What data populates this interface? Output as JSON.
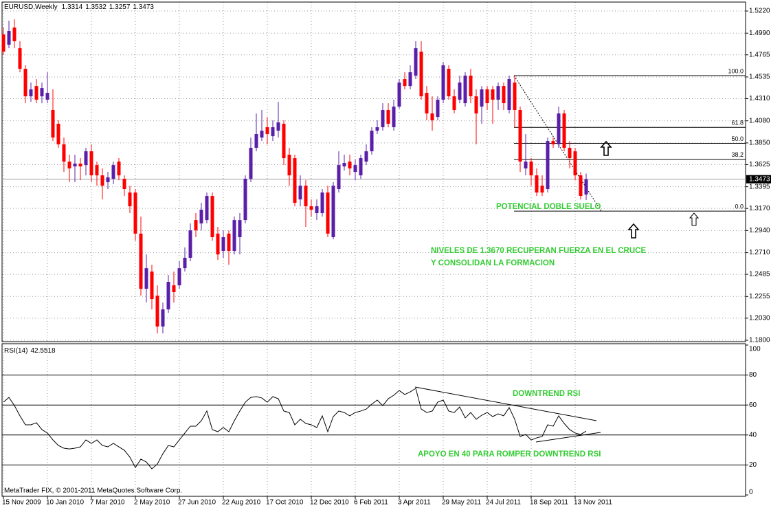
{
  "chart_data": {
    "type": "candlestick",
    "title": "EURUSD,Weekly",
    "footer": "MetaTrader FIX, © 2001-2011 MetaQuotes Software Corp.",
    "categories": [
      "15 Nov 2009",
      null,
      null,
      null,
      null,
      null,
      null,
      null,
      "10 Jan 2010",
      null,
      null,
      null,
      null,
      null,
      null,
      null,
      "7 Mar 2010",
      null,
      null,
      null,
      null,
      null,
      null,
      null,
      "2 May 2010",
      null,
      null,
      null,
      null,
      null,
      null,
      null,
      "27 Jun 2010",
      null,
      null,
      null,
      null,
      null,
      null,
      null,
      "22 Aug 2010",
      null,
      null,
      null,
      null,
      null,
      null,
      null,
      "17 Oct 2010",
      null,
      null,
      null,
      null,
      null,
      null,
      null,
      "12 Dec 2010",
      null,
      null,
      null,
      null,
      null,
      null,
      null,
      "6 Feb 2011",
      null,
      null,
      null,
      null,
      null,
      null,
      null,
      "3 Apr 2011",
      null,
      null,
      null,
      null,
      null,
      null,
      null,
      "29 May 2011",
      null,
      null,
      null,
      null,
      null,
      null,
      null,
      "24 Jul 2011",
      null,
      null,
      null,
      null,
      null,
      null,
      null,
      "18 Sep 2011",
      null,
      null,
      null,
      null,
      null,
      null,
      null,
      "13 Nov 2011",
      null,
      null
    ],
    "open": [
      1.4977,
      1.487,
      1.5048,
      1.4834,
      1.462,
      1.4334,
      1.4441,
      1.4334,
      1.4299,
      1.4192,
      1.4049,
      1.3835,
      1.3656,
      1.3606,
      1.3635,
      1.362,
      1.3763,
      1.362,
      1.3513,
      1.3442,
      1.3478,
      1.3656,
      1.3478,
      1.3335,
      1.3335,
      1.2908,
      1.2335,
      1.2514,
      1.2264,
      1.1943,
      1.2121,
      1.2371,
      1.2371,
      1.2549,
      1.2657,
      1.3049,
      1.3014,
      1.3049,
      1.3299,
      1.2908,
      1.2728,
      1.2908,
      1.2728,
      1.2871,
      1.3049,
      1.3478,
      1.3799,
      1.3906,
      1.4013,
      1.392,
      1.3977,
      1.4049,
      1.3728,
      1.3692,
      1.3263,
      1.3406,
      1.3192,
      1.3121,
      1.3121,
      1.3335,
      1.2871,
      1.3371,
      1.3606,
      1.3656,
      1.3549,
      1.3513,
      1.3656,
      1.3763,
      1.3977,
      1.4013,
      1.4192,
      1.4013,
      1.4227,
      1.4513,
      1.4441,
      1.4549,
      1.4798,
      1.437,
      1.4156,
      1.412,
      1.4299,
      1.462,
      1.4334,
      1.4299,
      1.4263,
      1.4549,
      1.4334,
      1.4227,
      1.4406,
      1.4406,
      1.4299,
      1.4441,
      1.4192,
      1.4477,
      1.4192,
      1.3585,
      1.3656,
      1.3513,
      1.3406,
      1.3371,
      1.387,
      1.3835,
      1.4156,
      1.3799,
      1.3763,
      1.3513,
      1.3314
    ],
    "high": [
      1.5048,
      1.512,
      1.5134,
      1.4906,
      1.4656,
      1.4477,
      1.4513,
      1.4477,
      1.4584,
      1.4406,
      1.4085,
      1.3906,
      1.3728,
      1.3728,
      1.3692,
      1.3799,
      1.3835,
      1.3656,
      1.3585,
      1.3549,
      1.3656,
      1.3692,
      1.3513,
      1.3406,
      1.3371,
      1.3085,
      1.2692,
      1.2585,
      1.2371,
      1.2192,
      1.2478,
      1.2514,
      1.2621,
      1.2764,
      1.3014,
      1.3121,
      1.3228,
      1.3335,
      1.3335,
      1.2978,
      1.2942,
      1.2942,
      1.3085,
      1.3121,
      1.3513,
      1.3906,
      1.4156,
      1.4192,
      1.412,
      1.4085,
      1.4277,
      1.4085,
      1.3799,
      1.3728,
      1.3513,
      1.3463,
      1.3263,
      1.3263,
      1.3371,
      1.3406,
      1.3442,
      1.3763,
      1.3728,
      1.3728,
      1.3678,
      1.3728,
      1.3835,
      1.4013,
      1.4085,
      1.4263,
      1.4263,
      1.4299,
      1.4513,
      1.4584,
      1.4656,
      1.4906,
      1.4906,
      1.4441,
      1.4334,
      1.4334,
      1.4691,
      1.4656,
      1.4406,
      1.4549,
      1.4584,
      1.462,
      1.4406,
      1.4441,
      1.4441,
      1.4441,
      1.4477,
      1.4477,
      1.4549,
      1.4549,
      1.4227,
      1.3942,
      1.3692,
      1.3585,
      1.3513,
      1.3906,
      1.3906,
      1.4227,
      1.4192,
      1.387,
      1.3799,
      1.3549,
      1.3532
    ],
    "low": [
      1.4763,
      1.4834,
      1.4834,
      1.4584,
      1.4263,
      1.4277,
      1.4263,
      1.4263,
      1.4263,
      1.387,
      1.3799,
      1.3549,
      1.3442,
      1.3442,
      1.3463,
      1.3513,
      1.3442,
      1.3406,
      1.3263,
      1.3371,
      1.3421,
      1.3463,
      1.3299,
      1.3121,
      1.2835,
      1.2264,
      1.2192,
      1.2121,
      1.1871,
      1.1871,
      1.2085,
      1.2192,
      1.2335,
      1.2514,
      1.2621,
      1.2871,
      1.2942,
      1.3014,
      1.2835,
      1.2635,
      1.2657,
      1.2585,
      1.2692,
      1.2692,
      1.3014,
      1.3442,
      1.3763,
      1.387,
      1.3835,
      1.387,
      1.3906,
      1.362,
      1.3406,
      1.3192,
      1.3192,
      1.2978,
      1.3085,
      1.3049,
      1.3085,
      1.2871,
      1.2849,
      1.3335,
      1.3563,
      1.3513,
      1.3463,
      1.3478,
      1.362,
      1.3728,
      1.3942,
      1.3977,
      1.4013,
      1.3977,
      1.4206,
      1.4406,
      1.4406,
      1.4513,
      1.4299,
      1.4085,
      1.3977,
      1.4085,
      1.4263,
      1.4299,
      1.4156,
      1.4263,
      1.4227,
      1.4263,
      1.3835,
      1.4049,
      1.4192,
      1.4049,
      1.4192,
      1.4192,
      1.4156,
      1.4013,
      1.3549,
      1.3513,
      1.3406,
      1.3299,
      1.3299,
      1.3335,
      1.3799,
      1.3799,
      1.3763,
      1.3585,
      1.3463,
      1.3263,
      1.3257
    ],
    "close": [
      1.4798,
      1.5013,
      1.4906,
      1.462,
      1.4334,
      1.4406,
      1.4299,
      1.442,
      1.437,
      1.3906,
      1.3835,
      1.3656,
      1.3585,
      1.3635,
      1.3606,
      1.3763,
      1.3513,
      1.3513,
      1.3406,
      1.3492,
      1.362,
      1.3513,
      1.3371,
      1.3192,
      1.2908,
      1.2335,
      1.2549,
      1.2228,
      1.1943,
      1.2121,
      1.2407,
      1.23,
      1.2549,
      1.2657,
      1.2942,
      1.2942,
      1.3156,
      1.3299,
      1.2871,
      1.2692,
      1.2871,
      1.2728,
      1.3049,
      1.3049,
      1.3478,
      1.3799,
      1.3942,
      1.3977,
      1.3942,
      1.4013,
      1.4063,
      1.3692,
      1.3513,
      1.3228,
      1.3406,
      1.3192,
      1.3156,
      1.3192,
      1.3335,
      1.2908,
      1.3406,
      1.362,
      1.3642,
      1.3585,
      1.362,
      1.3692,
      1.3763,
      1.3977,
      1.4013,
      1.4192,
      1.4049,
      1.4227,
      1.4477,
      1.4441,
      1.4584,
      1.4834,
      1.4334,
      1.4156,
      1.4085,
      1.4299,
      1.4656,
      1.4334,
      1.4192,
      1.4477,
      1.4549,
      1.4334,
      1.4156,
      1.4406,
      1.4263,
      1.4299,
      1.4441,
      1.4263,
      1.4513,
      1.4192,
      1.3656,
      1.3656,
      1.3513,
      1.3335,
      1.3335,
      1.387,
      1.3835,
      1.4156,
      1.3799,
      1.3692,
      1.3513,
      1.3299,
      1.3473
    ],
    "up_color": "#5a1fa8",
    "down_color": "#ff0000",
    "ylim": [
      1.1786,
      1.5313
    ],
    "yticks": [
      {
        "value": 1.522,
        "label": "1.5220"
      },
      {
        "value": 1.499,
        "label": "1.4990"
      },
      1.4765,
      1.4535,
      {
        "value": 1.431,
        "label": "1.4310"
      },
      {
        "value": 1.408,
        "label": "1.4080"
      },
      {
        "value": 1.385,
        "label": "1.3850"
      },
      1.3625,
      1.3395,
      {
        "value": 1.317,
        "label": "1.3170"
      },
      {
        "value": 1.294,
        "label": "1.2940"
      },
      {
        "value": 1.271,
        "label": "1.2710"
      },
      1.2485,
      1.2255,
      {
        "value": 1.203,
        "label": "1.2030"
      },
      {
        "value": 1.18,
        "label": "1.1800"
      }
    ],
    "grid": true,
    "fibonacci": [
      {
        "value": 1.4549,
        "label": "100.0"
      },
      {
        "value": 1.4012,
        "label": "61.8"
      },
      {
        "value": 1.3846,
        "label": "50.0"
      },
      {
        "value": 1.3679,
        "label": "38.2"
      },
      {
        "value": 1.3142,
        "label": "0.0"
      }
    ],
    "annotations": [
      "POTENCIAL DOBLE SUELO",
      "NIVELES DE 1.3670 RECUPERAN FUERZA EN EL CRUCE",
      "Y CONSOLIDAN LA FORMACION",
      "DOWNTREND RSI",
      "APOYO EN 40 PARA ROMPER DOWNTREND RSI"
    ],
    "annotation_color": "#33cc33",
    "rsi": {
      "name": "RSI(14)",
      "color": "#000000",
      "values": [
        61.9,
        65.1,
        59.6,
        52.8,
        46.8,
        46.8,
        48.2,
        43.6,
        41.3,
        36.7,
        33.0,
        31.2,
        30.7,
        31.2,
        32.1,
        36.7,
        34.4,
        36.7,
        33.0,
        32.1,
        34.4,
        32.1,
        29.8,
        25.2,
        18.3,
        23.9,
        22.0,
        17.4,
        20.6,
        27.5,
        33.0,
        32.1,
        36.7,
        41.3,
        45.9,
        45.9,
        49.5,
        56.0,
        43.6,
        42.2,
        45.0,
        42.2,
        49.5,
        56.0,
        61.9,
        65.1,
        65.6,
        64.7,
        61.9,
        65.6,
        64.2,
        56.0,
        55.0,
        46.8,
        50.5,
        47.7,
        46.8,
        45.0,
        52.8,
        42.2,
        52.3,
        56.0,
        55.0,
        52.8,
        55.0,
        56.0,
        57.3,
        60.6,
        63.3,
        59.6,
        64.2,
        66.5,
        69.7,
        67.0,
        68.8,
        71.1,
        57.3,
        55.0,
        56.0,
        61.9,
        63.3,
        56.0,
        55.0,
        58.7,
        51.4,
        55.0,
        50.5,
        53.2,
        55.0,
        52.3,
        54.1,
        52.8,
        58.3,
        50.5,
        39.0,
        40.4,
        36.7,
        38.1,
        39.0,
        46.8,
        45.9,
        52.8,
        47.7,
        43.6,
        41.3,
        40.4,
        42.5518
      ],
      "ylim": [
        0,
        100
      ],
      "yticks": [
        0,
        20,
        40,
        60,
        80,
        100
      ],
      "levels": [
        20,
        40,
        60,
        80
      ]
    }
  }
}
